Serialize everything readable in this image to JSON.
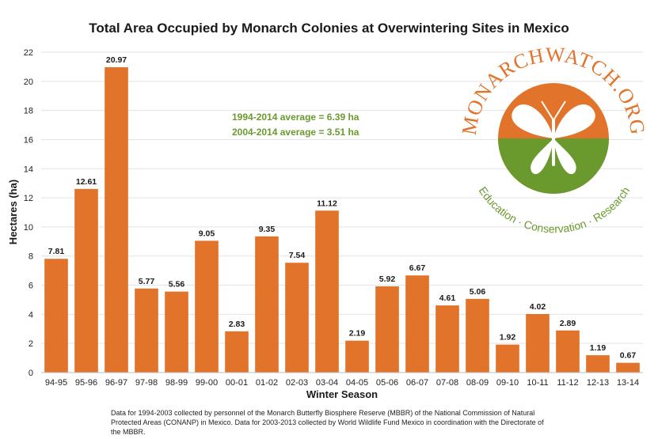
{
  "chart_data": {
    "type": "bar",
    "title": "Total Area Occupied by Monarch Colonies at Overwintering Sites in Mexico",
    "xlabel": "Winter Season",
    "ylabel": "Hectares (ha)",
    "ylim": [
      0,
      22
    ],
    "yticks": [
      "0",
      "2",
      "4",
      "6",
      "8",
      "10",
      "12",
      "14",
      "16",
      "18",
      "20",
      "22"
    ],
    "grid": true,
    "categories": [
      "94-95",
      "95-96",
      "96-97",
      "97-98",
      "98-99",
      "99-00",
      "00-01",
      "01-02",
      "02-03",
      "03-04",
      "04-05",
      "05-06",
      "06-07",
      "07-08",
      "08-09",
      "09-10",
      "10-11",
      "11-12",
      "12-13",
      "13-14"
    ],
    "values": [
      7.81,
      12.61,
      20.97,
      5.77,
      5.56,
      9.05,
      2.83,
      9.35,
      7.54,
      11.12,
      2.19,
      5.92,
      6.67,
      4.61,
      5.06,
      1.92,
      4.02,
      2.89,
      1.19,
      0.67
    ],
    "value_labels": [
      "7.81",
      "12.61",
      "20.97",
      "5.77",
      "5.56",
      "9.05",
      "2.83",
      "9.35",
      "7.54",
      "11.12",
      "2.19",
      "5.92",
      "6.67",
      "4.61",
      "5.06",
      "1.92",
      "4.02",
      "2.89",
      "1.19",
      "0.67"
    ],
    "bar_color": "#e2732a",
    "annotations": [
      "1994-2014 average = 6.39 ha",
      "2004-2014 average = 3.51 ha"
    ],
    "annotation_color": "#6a9a2e"
  },
  "logo": {
    "arc_text": "MONARCHWATCH.ORG",
    "bottom_text": "Education · Conservation · Research",
    "orange": "#e2732a",
    "green": "#6a9a2e"
  },
  "footnote": "Data for 1994-2003 collected by personnel of the Monarch Butterfly Biosphere Reserve (MBBR) of the National Commission of Natural Protected Areas (CONANP) in Mexico. Data for 2003-2013 collected by World Wildlife Fund Mexico in coordination with the Directorate of the MBBR."
}
